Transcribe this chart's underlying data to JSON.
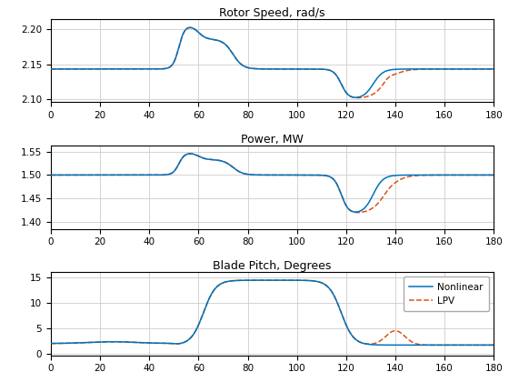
{
  "title1": "Rotor Speed, rad/s",
  "title2": "Power, MW",
  "title3": "Blade Pitch, Degrees",
  "xlim": [
    0,
    180
  ],
  "xticks": [
    0,
    20,
    40,
    60,
    80,
    100,
    120,
    140,
    160,
    180
  ],
  "rotor_yticks": [
    2.1,
    2.15,
    2.2
  ],
  "power_yticks": [
    1.4,
    1.45,
    1.5,
    1.55
  ],
  "pitch_yticks": [
    0,
    5,
    10,
    15
  ],
  "nl_color": "#0072BD",
  "lpv_color": "#D95319",
  "legend_labels": [
    "Nonlinear",
    "LPV"
  ],
  "figsize": [
    5.6,
    4.2
  ],
  "dpi": 100
}
